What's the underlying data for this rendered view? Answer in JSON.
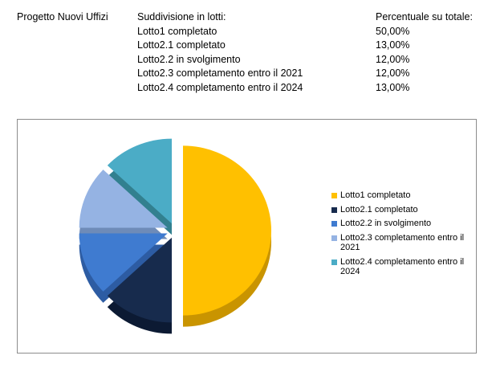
{
  "header": {
    "project_title": "Progetto Nuovi Uffizi",
    "subdivision_title": "Suddivisione in lotti:",
    "percent_title": "Percentuale su totale:",
    "rows": [
      {
        "label": "Lotto1 completato",
        "percent": "50,00%"
      },
      {
        "label": "Lotto2.1 completato",
        "percent": "13,00%"
      },
      {
        "label": "Lotto2.2 in svolgimento",
        "percent": "12,00%"
      },
      {
        "label": "Lotto2.3 completamento entro il 2021",
        "percent": "12,00%"
      },
      {
        "label": "Lotto2.4  completamento entro il 2024",
        "percent": "13,00%"
      }
    ]
  },
  "chart_data": {
    "type": "pie",
    "title": "",
    "exploded": true,
    "three_d": true,
    "legend_position": "right",
    "categories": [
      "Lotto1 completato",
      "Lotto2.1 completato",
      "Lotto2.2 in svolgimento",
      "Lotto2.3 completamento entro il 2021",
      "Lotto2.4  completamento entro il 2024"
    ],
    "values": [
      50,
      13,
      12,
      12,
      13
    ],
    "colors": [
      "#FFC000",
      "#172B4D",
      "#3F7BD0",
      "#95B3E3",
      "#4BACC6"
    ],
    "side_colors": [
      "#C99400",
      "#0C1A33",
      "#2D5CA3",
      "#6E8BB8",
      "#32808F"
    ]
  }
}
